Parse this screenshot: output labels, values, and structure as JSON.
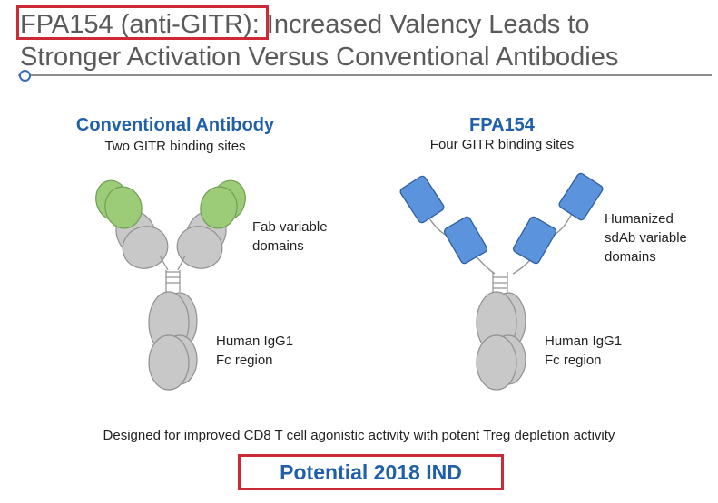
{
  "title": {
    "line1": "FPA154 (anti-GITR): Increased Valency Leads to",
    "line2": "Stronger Activation Versus Conventional Antibodies"
  },
  "left_panel": {
    "title": "Conventional Antibody",
    "subtitle": "Two GITR binding sites",
    "fab_label": [
      "Fab variable",
      "domains"
    ],
    "fc_label": [
      "Human IgG1",
      "Fc region"
    ]
  },
  "right_panel": {
    "title": "FPA154",
    "subtitle": "Four GITR binding sites",
    "sdab_label": [
      "Humanized",
      "sdAb variable",
      "domains"
    ],
    "fc_label": [
      "Human IgG1",
      "Fc region"
    ]
  },
  "caption": "Designed for improved CD8 T cell agonistic activity with potent Treg depletion activity",
  "ind_text": "Potential 2018 IND",
  "colors": {
    "accent_blue": "#2060aa",
    "highlight_red": "#cc2a36",
    "fab_green": "#9ccc78",
    "sdab_blue": "#5b93dc",
    "constant_gray": "#c8c8c8"
  }
}
